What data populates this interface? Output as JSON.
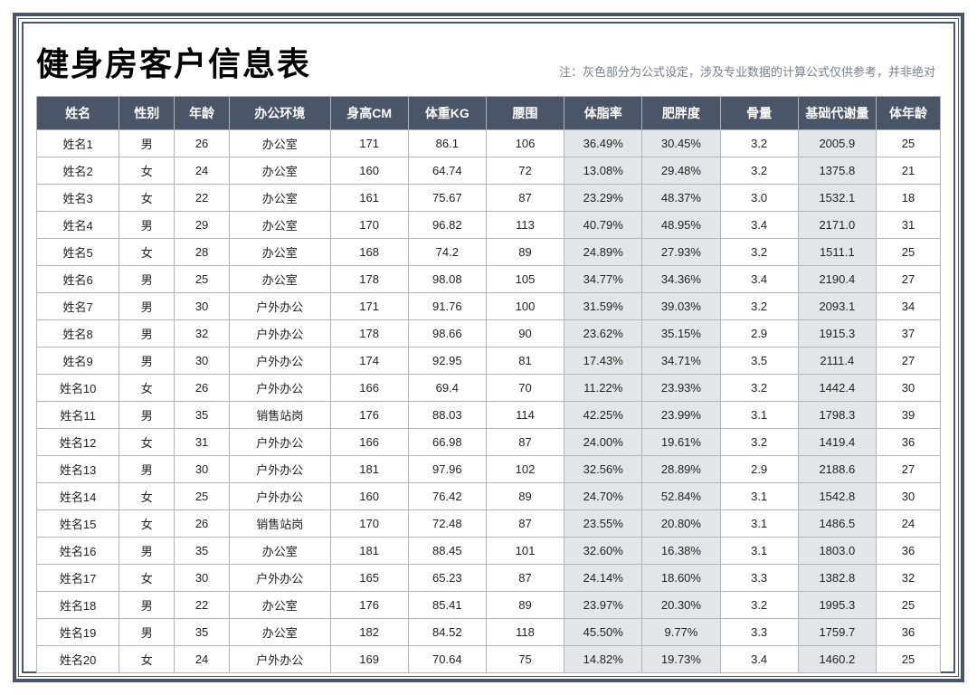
{
  "title": "健身房客户信息表",
  "note": "注：灰色部分为公式设定，涉及专业数据的计算公式仅供参考，并非绝对",
  "columns": [
    "姓名",
    "性别",
    "年龄",
    "办公环境",
    "身高CM",
    "体重KG",
    "腰围",
    "体脂率",
    "肥胖度",
    "骨量",
    "基础代谢量",
    "体年龄"
  ],
  "shaded_column_indices": [
    7,
    8,
    10
  ],
  "colors": {
    "header_bg": "#4a5568",
    "header_fg": "#ffffff",
    "shaded_bg": "#e3e5e8",
    "border": "#b0b4ba",
    "note_color": "#7a7f88",
    "title_color": "#000000"
  },
  "rows": [
    [
      "姓名1",
      "男",
      "26",
      "办公室",
      "171",
      "86.1",
      "106",
      "36.49%",
      "30.45%",
      "3.2",
      "2005.9",
      "25"
    ],
    [
      "姓名2",
      "女",
      "24",
      "办公室",
      "160",
      "64.74",
      "72",
      "13.08%",
      "29.48%",
      "3.2",
      "1375.8",
      "21"
    ],
    [
      "姓名3",
      "女",
      "22",
      "办公室",
      "161",
      "75.67",
      "87",
      "23.29%",
      "48.37%",
      "3.0",
      "1532.1",
      "18"
    ],
    [
      "姓名4",
      "男",
      "29",
      "办公室",
      "170",
      "96.82",
      "113",
      "40.79%",
      "48.95%",
      "3.4",
      "2171.0",
      "31"
    ],
    [
      "姓名5",
      "女",
      "28",
      "办公室",
      "168",
      "74.2",
      "89",
      "24.89%",
      "27.93%",
      "3.2",
      "1511.1",
      "25"
    ],
    [
      "姓名6",
      "男",
      "25",
      "办公室",
      "178",
      "98.08",
      "105",
      "34.77%",
      "34.36%",
      "3.4",
      "2190.4",
      "27"
    ],
    [
      "姓名7",
      "男",
      "30",
      "户外办公",
      "171",
      "91.76",
      "100",
      "31.59%",
      "39.03%",
      "3.2",
      "2093.1",
      "34"
    ],
    [
      "姓名8",
      "男",
      "32",
      "户外办公",
      "178",
      "98.66",
      "90",
      "23.62%",
      "35.15%",
      "2.9",
      "1915.3",
      "37"
    ],
    [
      "姓名9",
      "男",
      "30",
      "户外办公",
      "174",
      "92.95",
      "81",
      "17.43%",
      "34.71%",
      "3.5",
      "2111.4",
      "27"
    ],
    [
      "姓名10",
      "女",
      "26",
      "户外办公",
      "166",
      "69.4",
      "70",
      "11.22%",
      "23.93%",
      "3.2",
      "1442.4",
      "30"
    ],
    [
      "姓名11",
      "男",
      "35",
      "销售站岗",
      "176",
      "88.03",
      "114",
      "42.25%",
      "23.99%",
      "3.1",
      "1798.3",
      "39"
    ],
    [
      "姓名12",
      "女",
      "31",
      "户外办公",
      "166",
      "66.98",
      "87",
      "24.00%",
      "19.61%",
      "3.2",
      "1419.4",
      "36"
    ],
    [
      "姓名13",
      "男",
      "30",
      "户外办公",
      "181",
      "97.96",
      "102",
      "32.56%",
      "28.89%",
      "2.9",
      "2188.6",
      "27"
    ],
    [
      "姓名14",
      "女",
      "25",
      "户外办公",
      "160",
      "76.42",
      "89",
      "24.70%",
      "52.84%",
      "3.1",
      "1542.8",
      "30"
    ],
    [
      "姓名15",
      "女",
      "26",
      "销售站岗",
      "170",
      "72.48",
      "87",
      "23.55%",
      "20.80%",
      "3.1",
      "1486.5",
      "24"
    ],
    [
      "姓名16",
      "男",
      "35",
      "办公室",
      "181",
      "88.45",
      "101",
      "32.60%",
      "16.38%",
      "3.1",
      "1803.0",
      "36"
    ],
    [
      "姓名17",
      "女",
      "30",
      "户外办公",
      "165",
      "65.23",
      "87",
      "24.14%",
      "18.60%",
      "3.3",
      "1382.8",
      "32"
    ],
    [
      "姓名18",
      "男",
      "22",
      "办公室",
      "176",
      "85.41",
      "89",
      "23.97%",
      "20.30%",
      "3.2",
      "1995.3",
      "25"
    ],
    [
      "姓名19",
      "男",
      "35",
      "办公室",
      "182",
      "84.52",
      "118",
      "45.50%",
      "9.77%",
      "3.3",
      "1759.7",
      "36"
    ],
    [
      "姓名20",
      "女",
      "24",
      "户外办公",
      "169",
      "70.64",
      "75",
      "14.82%",
      "19.73%",
      "3.4",
      "1460.2",
      "25"
    ]
  ]
}
